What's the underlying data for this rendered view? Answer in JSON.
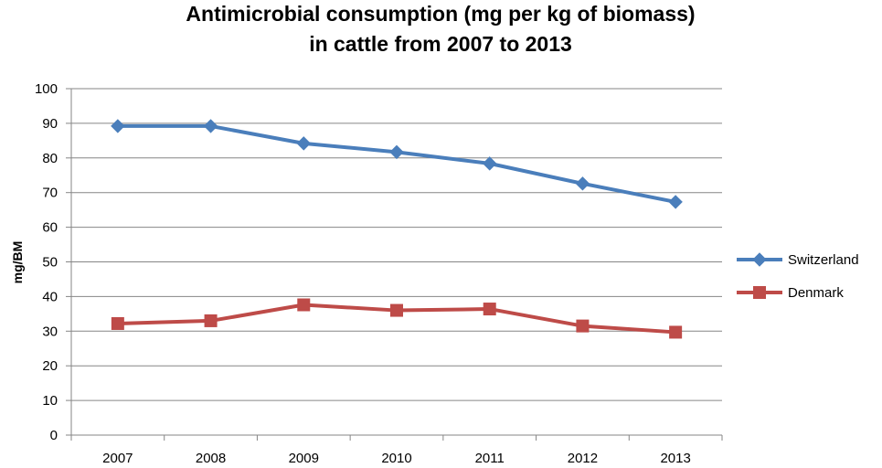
{
  "chart_data": {
    "type": "line",
    "title_lines": [
      "Antimicrobial consumption (mg per kg of biomass)",
      "in cattle from 2007 to 2013"
    ],
    "xlabel": "",
    "ylabel": "mg/BM",
    "categories": [
      "2007",
      "2008",
      "2009",
      "2010",
      "2011",
      "2012",
      "2013"
    ],
    "ylim": [
      0,
      100
    ],
    "yticks": [
      0,
      10,
      20,
      30,
      40,
      50,
      60,
      70,
      80,
      90,
      100
    ],
    "grid": true,
    "legend_position": "right",
    "series": [
      {
        "name": "Switzerland",
        "color": "#4a7ebb",
        "marker": "diamond",
        "values": [
          89.2,
          89.2,
          84.2,
          81.7,
          78.4,
          72.6,
          67.3
        ]
      },
      {
        "name": "Denmark",
        "color": "#be4b48",
        "marker": "square",
        "values": [
          32.2,
          33.0,
          37.6,
          36.0,
          36.4,
          31.5,
          29.7
        ]
      }
    ]
  }
}
